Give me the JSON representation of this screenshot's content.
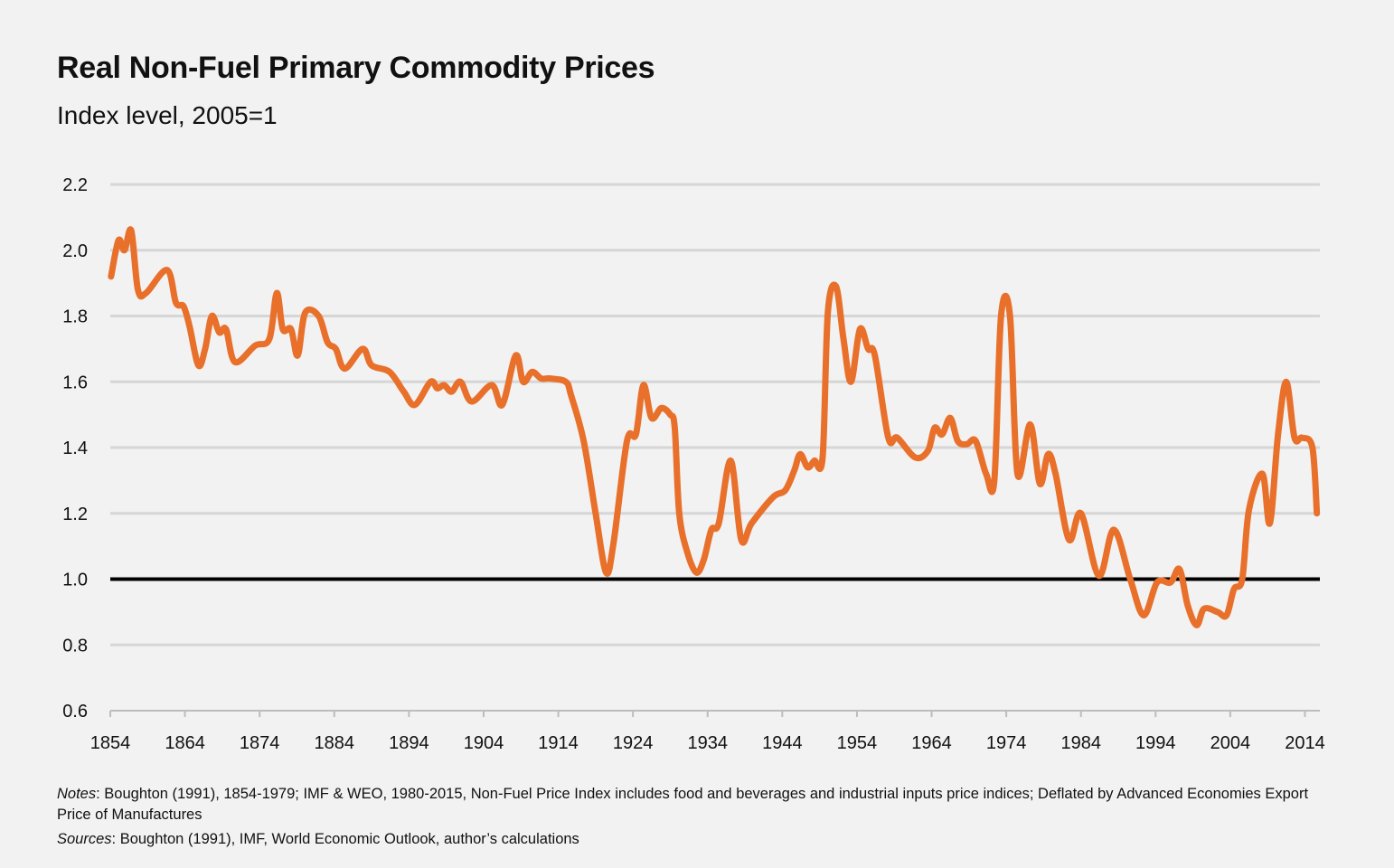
{
  "chart_data": {
    "type": "line",
    "title": "Real Non-Fuel Primary Commodity Prices",
    "subtitle": "Index level, 2005=1",
    "xlabel": "",
    "ylabel": "",
    "xlim": [
      1854,
      2016
    ],
    "ylim": [
      0.6,
      2.2
    ],
    "yticks": [
      "0.6",
      "0.8",
      "1.0",
      "1.2",
      "1.4",
      "1.6",
      "1.8",
      "2.0",
      "2.2"
    ],
    "xticks": [
      "1854",
      "1864",
      "1874",
      "1884",
      "1894",
      "1904",
      "1914",
      "1924",
      "1934",
      "1944",
      "1954",
      "1964",
      "1974",
      "1984",
      "1994",
      "2004",
      "2014"
    ],
    "grid": true,
    "reference_line": 1.0,
    "line_color": "#E8702A",
    "series": [
      {
        "x": [
          1854.1,
          1855.1,
          1855.9,
          1856.8,
          1857.7,
          1858.8,
          1861.6,
          1862.8,
          1863.8,
          1864.6,
          1865.8,
          1866.7,
          1867.6,
          1868.6,
          1869.5,
          1870.7,
          1873.4,
          1875.3,
          1876.3,
          1877.1,
          1878.2,
          1879.1,
          1880.1,
          1881.9,
          1883.1,
          1884.2,
          1885.4,
          1887.8,
          1889.0,
          1891.4,
          1893.3,
          1894.8,
          1896.9,
          1897.8,
          1898.7,
          1899.7,
          1900.9,
          1902.4,
          1905.1,
          1906.5,
          1908.3,
          1909.3,
          1910.5,
          1911.7,
          1912.9,
          1915.0,
          1915.7,
          1917.4,
          1919.0,
          1920.4,
          1921.4,
          1923.2,
          1924.4,
          1925.4,
          1926.5,
          1927.8,
          1929.0,
          1929.6,
          1930.2,
          1931.3,
          1932.5,
          1933.5,
          1934.5,
          1935.5,
          1937.1,
          1938.5,
          1939.9,
          1942.8,
          1944.4,
          1945.6,
          1946.4,
          1947.4,
          1948.3,
          1949.4,
          1950.1,
          1951.2,
          1952.2,
          1953.2,
          1954.4,
          1955.5,
          1956.4,
          1958.2,
          1959.4,
          1961.8,
          1963.5,
          1964.4,
          1965.4,
          1966.5,
          1967.5,
          1968.7,
          1969.9,
          1971.3,
          1972.4,
          1973.3,
          1974.5,
          1975.5,
          1977.2,
          1978.5,
          1979.6,
          1980.6,
          1982.4,
          1984.0,
          1986.4,
          1988.4,
          1990.6,
          1992.4,
          1994.2,
          1996.0,
          1997.2,
          1998.3,
          1999.5,
          2000.5,
          2002.3,
          2003.5,
          2004.5,
          2005.6,
          2006.5,
          2008.3,
          2009.3,
          2010.4,
          2011.5,
          2012.6,
          2013.6,
          2015.0,
          2015.6
        ],
        "y": [
          1.92,
          2.03,
          2.0,
          2.06,
          1.88,
          1.87,
          1.94,
          1.84,
          1.83,
          1.77,
          1.65,
          1.7,
          1.8,
          1.75,
          1.76,
          1.66,
          1.71,
          1.73,
          1.87,
          1.76,
          1.76,
          1.68,
          1.81,
          1.8,
          1.72,
          1.7,
          1.64,
          1.7,
          1.65,
          1.63,
          1.57,
          1.53,
          1.6,
          1.58,
          1.59,
          1.57,
          1.6,
          1.54,
          1.59,
          1.53,
          1.68,
          1.6,
          1.63,
          1.61,
          1.61,
          1.6,
          1.56,
          1.42,
          1.2,
          1.02,
          1.11,
          1.42,
          1.44,
          1.59,
          1.49,
          1.52,
          1.5,
          1.46,
          1.2,
          1.08,
          1.02,
          1.06,
          1.15,
          1.17,
          1.36,
          1.12,
          1.17,
          1.25,
          1.27,
          1.33,
          1.38,
          1.34,
          1.36,
          1.37,
          1.81,
          1.89,
          1.73,
          1.6,
          1.76,
          1.7,
          1.68,
          1.43,
          1.43,
          1.37,
          1.39,
          1.46,
          1.44,
          1.49,
          1.42,
          1.41,
          1.42,
          1.32,
          1.3,
          1.8,
          1.8,
          1.32,
          1.47,
          1.29,
          1.38,
          1.32,
          1.12,
          1.2,
          1.01,
          1.15,
          1.0,
          0.89,
          0.99,
          0.99,
          1.03,
          0.92,
          0.86,
          0.91,
          0.9,
          0.89,
          0.97,
          1.0,
          1.21,
          1.32,
          1.17,
          1.44,
          1.6,
          1.43,
          1.43,
          1.4,
          1.2
        ]
      }
    ]
  },
  "footnotes": {
    "notes_label": "Notes",
    "notes_text": ": Boughton (1991), 1854-1979; IMF & WEO, 1980-2015, Non-Fuel Price Index includes food and beverages and industrial inputs price indices; Deflated by Advanced Economies Export Price of Manufactures",
    "sources_label": "Sources",
    "sources_text": ": Boughton (1991), IMF, World Economic Outlook, author’s calculations"
  }
}
